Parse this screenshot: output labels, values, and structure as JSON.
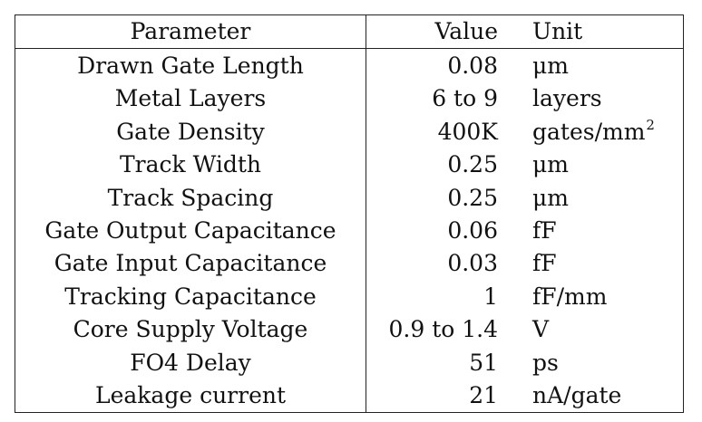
{
  "table": {
    "headers": {
      "parameter": "Parameter",
      "value": "Value",
      "unit": "Unit"
    },
    "rows": [
      {
        "parameter": "Drawn Gate Length",
        "value": "0.08",
        "unit": "μm",
        "unit_sup": ""
      },
      {
        "parameter": "Metal Layers",
        "value": "6 to 9",
        "unit": "layers",
        "unit_sup": ""
      },
      {
        "parameter": "Gate Density",
        "value": "400K",
        "unit": "gates/mm",
        "unit_sup": "2"
      },
      {
        "parameter": "Track Width",
        "value": "0.25",
        "unit": "μm",
        "unit_sup": ""
      },
      {
        "parameter": "Track Spacing",
        "value": "0.25",
        "unit": "μm",
        "unit_sup": ""
      },
      {
        "parameter": "Gate Output Capacitance",
        "value": "0.06",
        "unit": "fF",
        "unit_sup": ""
      },
      {
        "parameter": "Gate Input Capacitance",
        "value": "0.03",
        "unit": "fF",
        "unit_sup": ""
      },
      {
        "parameter": "Tracking Capacitance",
        "value": "1",
        "unit": "fF/mm",
        "unit_sup": ""
      },
      {
        "parameter": "Core Supply Voltage",
        "value": "0.9 to 1.4",
        "unit": "V",
        "unit_sup": ""
      },
      {
        "parameter": "FO4 Delay",
        "value": "51",
        "unit": "ps",
        "unit_sup": ""
      },
      {
        "parameter": "Leakage current",
        "value": "21",
        "unit": "nA/gate",
        "unit_sup": ""
      }
    ]
  }
}
